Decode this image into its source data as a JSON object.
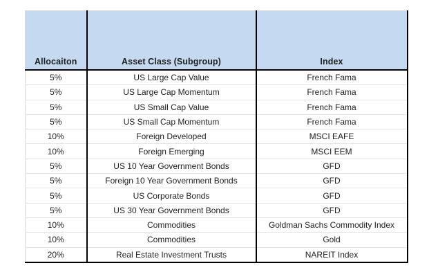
{
  "table": {
    "headers": {
      "allocation": "Allocaiton",
      "asset_class": "Asset Class (Subgroup)",
      "index": "Index"
    },
    "rows": [
      {
        "allocation": "5%",
        "asset_class": "US Large Cap Value",
        "index": "French Fama"
      },
      {
        "allocation": "5%",
        "asset_class": "US Large Cap Momentum",
        "index": "French Fama"
      },
      {
        "allocation": "5%",
        "asset_class": "US Small Cap Value",
        "index": "French Fama"
      },
      {
        "allocation": "5%",
        "asset_class": "US Small Cap Momentum",
        "index": "French Fama"
      },
      {
        "allocation": "10%",
        "asset_class": "Foreign Developed",
        "index": "MSCI EAFE"
      },
      {
        "allocation": "10%",
        "asset_class": "Foreign Emerging",
        "index": "MSCI EEM"
      },
      {
        "allocation": "5%",
        "asset_class": "US 10 Year Government Bonds",
        "index": "GFD"
      },
      {
        "allocation": "5%",
        "asset_class": "Foreign 10 Year Government Bonds",
        "index": "GFD"
      },
      {
        "allocation": "5%",
        "asset_class": "US Corporate Bonds",
        "index": "GFD"
      },
      {
        "allocation": "5%",
        "asset_class": "US 30 Year Government Bonds",
        "index": "GFD"
      },
      {
        "allocation": "10%",
        "asset_class": "Commodities",
        "index": "Goldman Sachs Commodity Index"
      },
      {
        "allocation": "10%",
        "asset_class": "Commodities",
        "index": "Gold"
      },
      {
        "allocation": "20%",
        "asset_class": "Real Estate Investment Trusts",
        "index": "NAREIT Index"
      }
    ]
  },
  "colors": {
    "header_bg": "#C5D9F1",
    "border_black": "#000000",
    "row_line": "#E4E4E4",
    "text": "#1F1F1F"
  }
}
